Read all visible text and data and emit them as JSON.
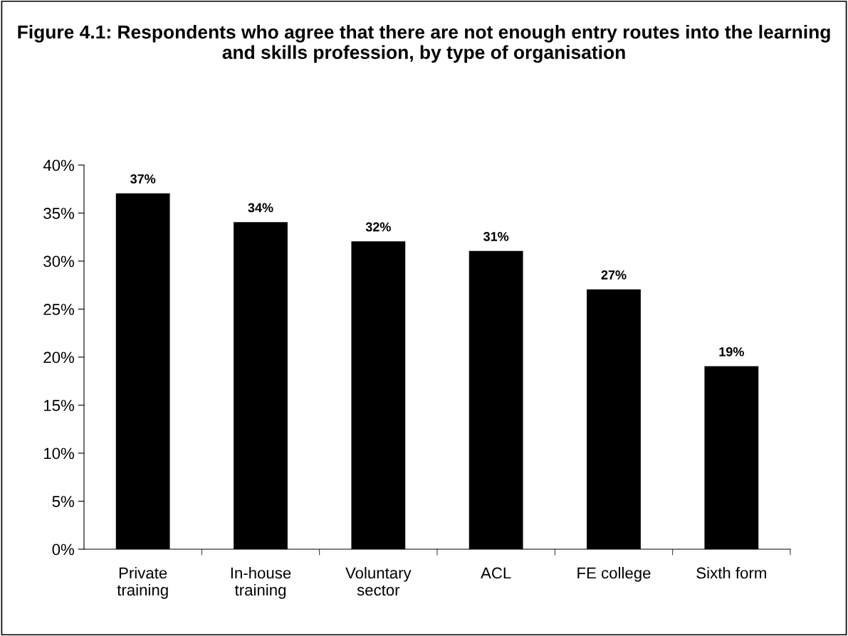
{
  "chart_data": {
    "type": "bar",
    "title": "Figure 4.1: Respondents who agree that there are not enough entry routes into the learning and skills profession, by type of organisation",
    "categories": [
      "Private\ntraining",
      "In-house\ntraining",
      "Voluntary\nsector",
      "ACL",
      "FE college",
      "Sixth form"
    ],
    "values": [
      37,
      34,
      32,
      31,
      27,
      19
    ],
    "color": "#000000",
    "value_labels": [
      "37%",
      "34%",
      "32%",
      "31%",
      "27%",
      "19%"
    ],
    "ylim": [
      0,
      40
    ],
    "yticks": [
      {
        "value": 0,
        "label": "0%"
      },
      {
        "value": 5,
        "label": "5%"
      },
      {
        "value": 10,
        "label": "10%"
      },
      {
        "value": 15,
        "label": "15%"
      },
      {
        "value": 20,
        "label": "20%"
      },
      {
        "value": 25,
        "label": "25%"
      },
      {
        "value": 30,
        "label": "30%"
      },
      {
        "value": 35,
        "label": "35%"
      },
      {
        "value": 40,
        "label": "40%"
      }
    ],
    "grid": false,
    "legend": false
  }
}
